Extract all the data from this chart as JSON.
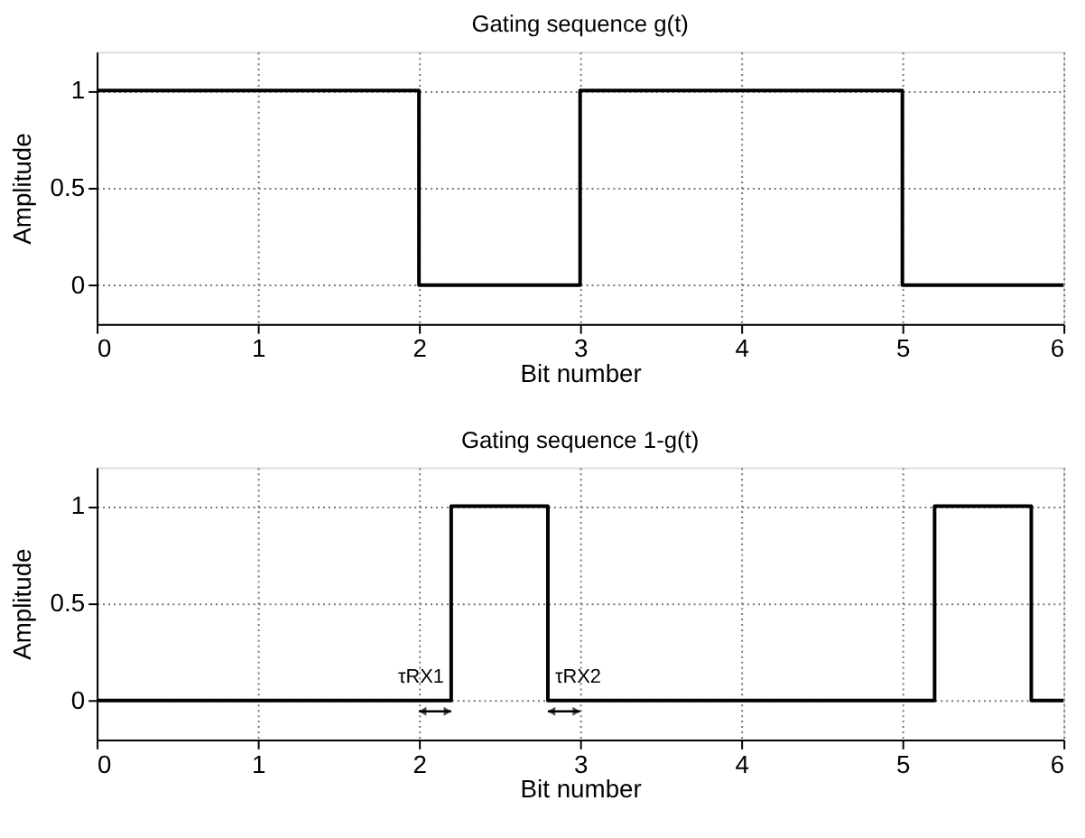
{
  "chart_data": [
    {
      "type": "step",
      "title": "Gating sequence g(t)",
      "xlabel": "Bit number",
      "ylabel": "Amplitude",
      "x": [
        0,
        2,
        3,
        5,
        6
      ],
      "values": [
        1,
        0,
        1,
        0,
        0
      ],
      "color": "#000000",
      "xlim": [
        0,
        6
      ],
      "xticks": [
        0,
        1,
        2,
        3,
        4,
        5,
        6
      ],
      "ylim": [
        -0.2,
        1.2
      ],
      "yticks": [
        0,
        0.5,
        1
      ],
      "grid": true,
      "line_style": "solid"
    },
    {
      "type": "step",
      "title": "Gating sequence 1-g(t)",
      "xlabel": "Bit number",
      "ylabel": "Amplitude",
      "x": [
        0,
        2.2,
        2.8,
        5.2,
        5.8,
        6
      ],
      "values": [
        0,
        1,
        0,
        1,
        0,
        0
      ],
      "color": "#000000",
      "xlim": [
        0,
        6
      ],
      "xticks": [
        0,
        1,
        2,
        3,
        4,
        5,
        6
      ],
      "ylim": [
        -0.2,
        1.2
      ],
      "yticks": [
        0,
        0.5,
        1
      ],
      "grid": true,
      "line_style": "solid",
      "annotations": [
        {
          "text": "τRX1",
          "x": 2.1,
          "y": 0
        },
        {
          "text": "τRX2",
          "x": 2.9,
          "y": 0
        }
      ]
    }
  ]
}
